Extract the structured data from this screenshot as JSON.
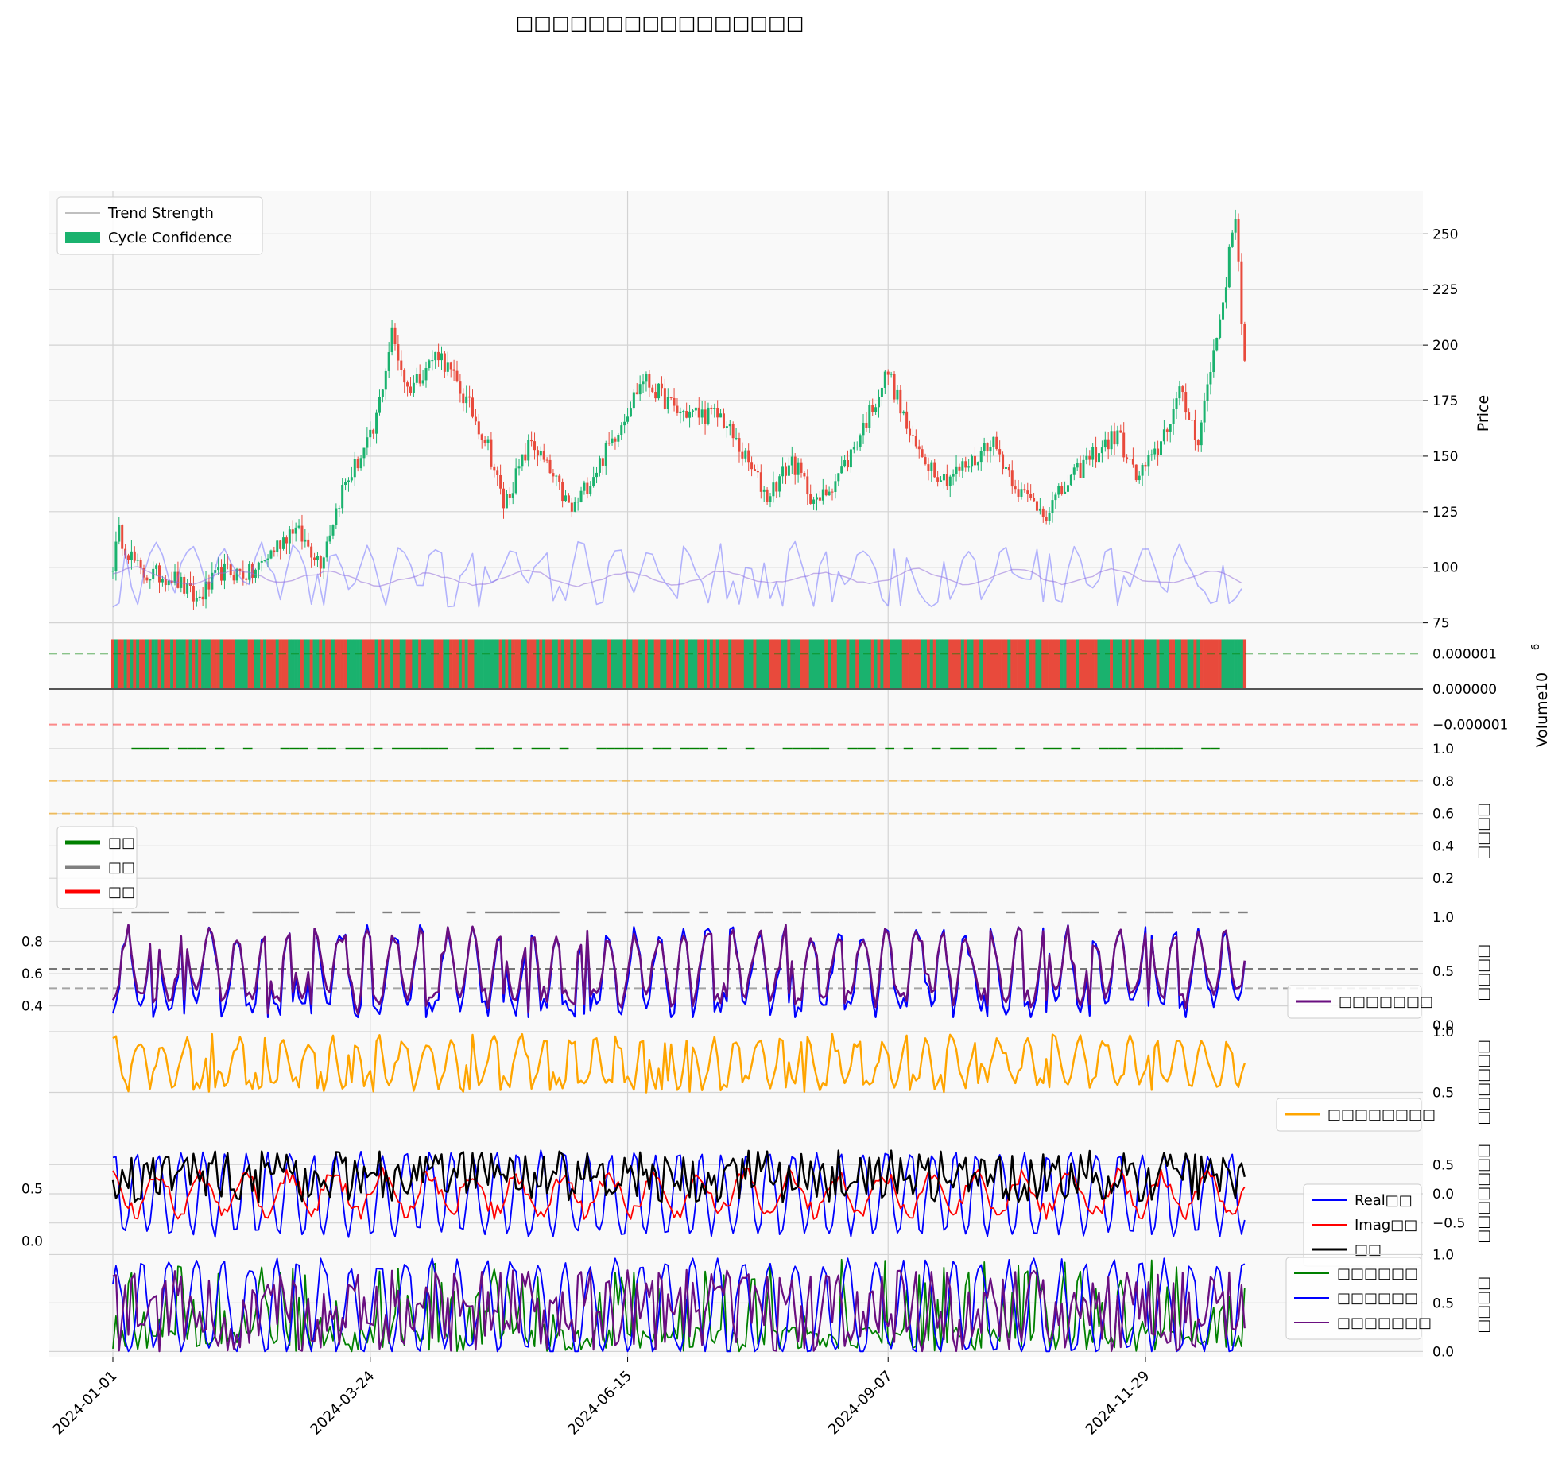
{
  "title": "□□□□□□□□□□□□□□□□",
  "x_axis": {
    "tick_labels": [
      "2024-01-01",
      "2024-03-24",
      "2024-06-15",
      "2024-09-07",
      "2024-11-29"
    ],
    "start": "2024-01-01",
    "end": "2024-12-31"
  },
  "colors": {
    "up": "#1ab26e",
    "down": "#e84a3c",
    "trend": "#9370db",
    "purple": "#6a0f80",
    "blue": "#0000ff",
    "red": "#ff0000",
    "black": "#000000",
    "orange": "#ffa500",
    "green": "#008000",
    "grey": "#808080",
    "panel_bg": "#f9f9f9",
    "grid": "#d3d3d3"
  },
  "chart_data": [
    {
      "type": "candlestick",
      "panel": "price",
      "ylabel": "Price",
      "ylim": [
        72,
        268
      ],
      "yticks": [
        75,
        100,
        125,
        150,
        175,
        200,
        225,
        250
      ],
      "legend": [
        "Trend Strength",
        "Cycle Confidence"
      ],
      "legend_position": "top-left",
      "price_path": [
        [
          "2024-01-01",
          102
        ],
        [
          "2024-01-03",
          115
        ],
        [
          "2024-01-10",
          97
        ],
        [
          "2024-01-20",
          96
        ],
        [
          "2024-01-28",
          85
        ],
        [
          "2024-02-05",
          98
        ],
        [
          "2024-02-15",
          97
        ],
        [
          "2024-02-28",
          118
        ],
        [
          "2024-03-08",
          103
        ],
        [
          "2024-03-15",
          135
        ],
        [
          "2024-03-25",
          160
        ],
        [
          "2024-03-31",
          205
        ],
        [
          "2024-04-05",
          180
        ],
        [
          "2024-04-15",
          197
        ],
        [
          "2024-04-25",
          172
        ],
        [
          "2024-05-01",
          155
        ],
        [
          "2024-05-06",
          128
        ],
        [
          "2024-05-15",
          157
        ],
        [
          "2024-05-28",
          125
        ],
        [
          "2024-06-08",
          152
        ],
        [
          "2024-06-20",
          185
        ],
        [
          "2024-07-01",
          170
        ],
        [
          "2024-07-15",
          168
        ],
        [
          "2024-07-30",
          132
        ],
        [
          "2024-08-07",
          148
        ],
        [
          "2024-08-15",
          128
        ],
        [
          "2024-08-25",
          148
        ],
        [
          "2024-09-07",
          188
        ],
        [
          "2024-09-15",
          155
        ],
        [
          "2024-09-25",
          140
        ],
        [
          "2024-10-05",
          148
        ],
        [
          "2024-10-10",
          158
        ],
        [
          "2024-10-20",
          133
        ],
        [
          "2024-10-28",
          125
        ],
        [
          "2024-11-10",
          148
        ],
        [
          "2024-11-20",
          160
        ],
        [
          "2024-11-26",
          140
        ],
        [
          "2024-12-02",
          150
        ],
        [
          "2024-12-10",
          178
        ],
        [
          "2024-12-16",
          158
        ],
        [
          "2024-12-24",
          220
        ],
        [
          "2024-12-28",
          260
        ],
        [
          "2024-12-31",
          190
        ]
      ],
      "trend_strength": "oscillating 80-110 (light blue) with a smoother 90-100 line (purple)",
      "cycle_confidence_note": "overlay bands"
    },
    {
      "type": "bar",
      "panel": "volume",
      "ylabel": "Volume",
      "exponent_label": "10",
      "exponent_sup": "6",
      "ylim": [
        -1.5e-06,
        1.5e-06
      ],
      "yticks": [
        "0.000001",
        "0.000000",
        "−0.000001"
      ],
      "reference_lines": [
        1e-06,
        0.0,
        -1e-06
      ]
    },
    {
      "type": "line",
      "panel": "regime",
      "ylabel": "□□□□",
      "ylim": [
        0,
        1
      ],
      "yticks": [
        "0.2",
        "0.4",
        "0.6",
        "0.8",
        "1.0"
      ],
      "legend": [
        "□□",
        "□□",
        "□□"
      ],
      "legend_position": "center-left",
      "reference_lines": [
        0.6,
        0.8
      ],
      "series_levels": {
        "green": 1.0,
        "grey": 0.0
      }
    },
    {
      "type": "line",
      "panel": "cycle-phase",
      "ylabel": "□□□□",
      "ylim_left": [
        0.28,
        0.95
      ],
      "yticks_left": [
        "0.4",
        "0.6",
        "0.8"
      ],
      "ylim_right": [
        0,
        1
      ],
      "yticks_right": [
        "0.0",
        "0.5",
        "1.0"
      ],
      "legend": [
        "□□□□□□□"
      ],
      "legend_position": "bottom-right"
    },
    {
      "type": "line",
      "panel": "cycle-confidence",
      "ylabel": "□□□□□□",
      "ylim": [
        0.15,
        1.0
      ],
      "yticks": [
        "0.5",
        "1.0"
      ],
      "legend": [
        "□□□□□□□□"
      ],
      "legend_position": "bottom-right"
    },
    {
      "type": "line",
      "panel": "hilbert",
      "ylabel": "□□□□□□□",
      "ylim_left": [
        -0.05,
        0.95
      ],
      "yticks_left": [
        "0.0",
        "0.5"
      ],
      "ylim_right": [
        -0.9,
        0.9
      ],
      "yticks_right": [
        "0.5",
        "0.0",
        "−0.5"
      ],
      "legend": [
        "Real□□",
        "Imag□□",
        "□□"
      ],
      "legend_position": "center-right"
    },
    {
      "type": "line",
      "panel": "probability",
      "ylabel": "□□□□",
      "ylim": [
        -0.03,
        1.02
      ],
      "yticks": [
        "0.0",
        "0.5",
        "1.0"
      ],
      "legend": [
        "□□□□□□",
        "□□□□□□",
        "□□□□□□□"
      ],
      "legend_position": "top-right"
    }
  ]
}
